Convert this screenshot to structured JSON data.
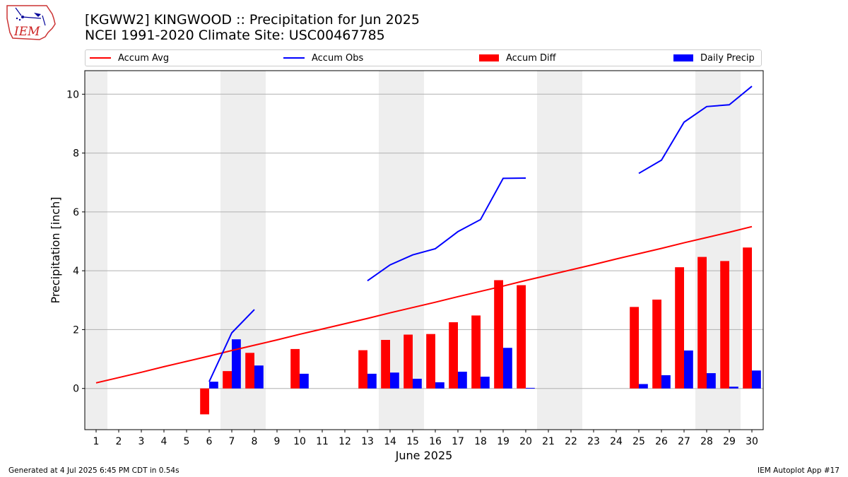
{
  "header": {
    "title_line1": "[KGWW2] KINGWOOD :: Precipitation for Jun 2025",
    "title_line2": "NCEI 1991-2020 Climate Site: USC00467785"
  },
  "logo": {
    "text": "IEM"
  },
  "legend": {
    "accum_avg": "Accum Avg",
    "accum_obs": "Accum Obs",
    "accum_diff": "Accum Diff",
    "daily_precip": "Daily Precip"
  },
  "footer": {
    "generated": "Generated at 4 Jul 2025 6:45 PM CDT in 0.54s",
    "app": "IEM Autoplot App #17"
  },
  "colors": {
    "avg": "#ff0000",
    "obs": "#0000ff",
    "diff": "#ff0000",
    "daily": "#0000ff",
    "weekend_shade": "#eeeeee",
    "grid": "#b0b0b0"
  },
  "chart_data": {
    "type": "bar",
    "xlabel": "June 2025",
    "ylabel": "Precipitation [inch]",
    "xlim": [
      0.5,
      30.5
    ],
    "ylim": [
      -1.4,
      10.8
    ],
    "yticks": [
      0,
      2,
      4,
      6,
      8,
      10
    ],
    "grid": "horizontal",
    "legend_position": "top",
    "days": [
      1,
      2,
      3,
      4,
      5,
      6,
      7,
      8,
      9,
      10,
      11,
      12,
      13,
      14,
      15,
      16,
      17,
      18,
      19,
      20,
      21,
      22,
      23,
      24,
      25,
      26,
      27,
      28,
      29,
      30
    ],
    "weekend_days": [
      1,
      7,
      8,
      14,
      15,
      21,
      22,
      28,
      29
    ],
    "series": [
      {
        "name": "Accum Avg",
        "type": "line",
        "values": [
          0.19,
          0.37,
          0.55,
          0.74,
          0.92,
          1.1,
          1.29,
          1.47,
          1.65,
          1.84,
          2.02,
          2.2,
          2.38,
          2.57,
          2.75,
          2.93,
          3.12,
          3.3,
          3.48,
          3.67,
          3.85,
          4.03,
          4.21,
          4.4,
          4.58,
          4.76,
          4.95,
          5.13,
          5.31,
          5.5
        ]
      },
      {
        "name": "Accum Obs",
        "type": "line",
        "values": [
          null,
          null,
          null,
          null,
          null,
          0.23,
          1.89,
          2.68,
          null,
          null,
          null,
          null,
          3.66,
          4.2,
          4.54,
          4.75,
          5.33,
          5.74,
          7.14,
          7.15,
          null,
          null,
          null,
          null,
          7.31,
          7.76,
          9.05,
          9.58,
          9.64,
          10.27
        ]
      },
      {
        "name": "Accum Diff",
        "type": "bar",
        "values": [
          null,
          null,
          null,
          null,
          null,
          -0.88,
          0.59,
          1.21,
          null,
          1.34,
          null,
          null,
          1.3,
          1.65,
          1.83,
          1.85,
          2.25,
          2.48,
          3.68,
          3.51,
          null,
          null,
          null,
          null,
          2.77,
          3.02,
          4.12,
          4.47,
          4.33,
          4.79
        ]
      },
      {
        "name": "Daily Precip",
        "type": "bar",
        "values": [
          null,
          null,
          null,
          null,
          null,
          0.23,
          1.67,
          0.78,
          null,
          0.5,
          null,
          null,
          0.5,
          0.54,
          0.33,
          0.21,
          0.57,
          0.4,
          1.38,
          0.02,
          null,
          null,
          null,
          null,
          0.15,
          0.45,
          1.29,
          0.52,
          0.06,
          0.61
        ]
      }
    ]
  }
}
